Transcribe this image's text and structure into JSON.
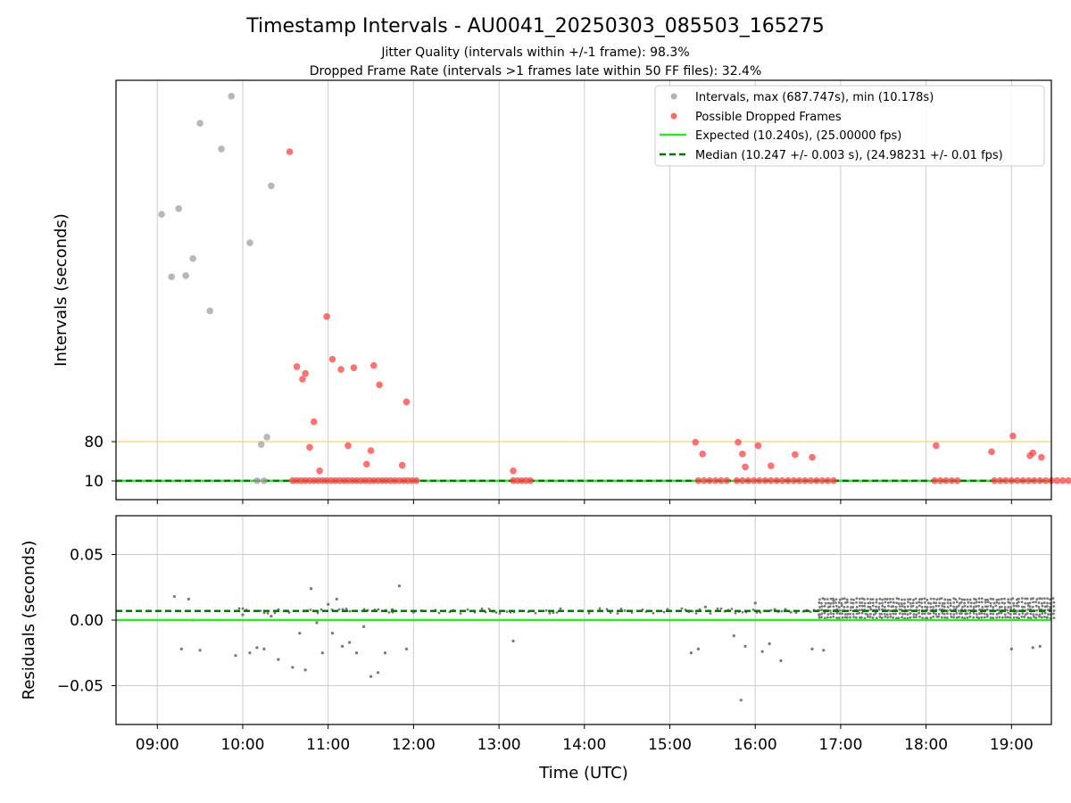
{
  "figure": {
    "title": "Timestamp Intervals - AU0041_20250303_085503_165275",
    "subtitle_1": "Jitter Quality (intervals within +/-1 frame): 98.3%",
    "subtitle_2": "Dropped Frame Rate (intervals >1 frames late within 50 FF files): 32.4%",
    "xlabel": "Time (UTC)"
  },
  "chart_data": [
    {
      "type": "scatter",
      "ylabel": "Intervals (seconds)",
      "x_ticks": [
        "09:00",
        "10:00",
        "11:00",
        "12:00",
        "13:00",
        "14:00",
        "15:00",
        "16:00",
        "17:00",
        "18:00",
        "19:00"
      ],
      "y_ticks": [
        10,
        80
      ],
      "y_scale": "custom non-linear (ticks shown at 10 and 80)",
      "grid": "vertical",
      "legend_position": "upper right",
      "reference_lines": [
        {
          "label": "80 s threshold",
          "y": 80,
          "color": "#ffd35c",
          "style": "solid"
        }
      ],
      "series": [
        {
          "name": "Intervals, max (687.747s), min (10.178s)",
          "color": "#a0a0a0",
          "style": "scatter",
          "x": [
            "09:03",
            "09:10",
            "09:15",
            "09:20",
            "09:25",
            "09:30",
            "09:37",
            "09:45",
            "09:52",
            "10:05",
            "10:10",
            "10:13",
            "10:15",
            "10:17",
            "10:20"
          ],
          "y": [
            480,
            370,
            490,
            372,
            402,
            640,
            310,
            595,
            687.747,
            430,
            10.2,
            75,
            10.2,
            88,
            530
          ]
        },
        {
          "name": "Possible Dropped Frames",
          "color": "#ff4444",
          "style": "scatter",
          "x": [
            "10:35",
            "10:38",
            "10:41",
            "10:44",
            "10:47",
            "10:50",
            "10:53",
            "10:56",
            "10:59",
            "11:02",
            "11:05",
            "11:08",
            "11:11",
            "11:14",
            "11:17",
            "11:20",
            "11:23",
            "11:26",
            "11:29",
            "11:32",
            "11:35",
            "11:38",
            "11:41",
            "11:44",
            "11:47",
            "11:50",
            "11:53",
            "11:56",
            "11:59",
            "12:02",
            "10:33",
            "10:38",
            "10:42",
            "10:44",
            "10:47",
            "10:50",
            "10:54",
            "10:59",
            "11:03",
            "11:09",
            "11:14",
            "11:18",
            "11:27",
            "11:30",
            "11:32",
            "11:36",
            "11:52",
            "11:55",
            "13:10",
            "13:13",
            "13:16",
            "13:19",
            "13:22",
            "15:20",
            "15:24",
            "15:28",
            "15:32",
            "15:36",
            "15:40",
            "15:47",
            "15:51",
            "15:55",
            "15:59",
            "16:03",
            "16:07",
            "16:11",
            "16:15",
            "16:19",
            "16:23",
            "16:27",
            "16:31",
            "16:35",
            "16:39",
            "16:43",
            "16:47",
            "16:51",
            "16:55",
            "18:06",
            "18:10",
            "18:14",
            "18:18",
            "18:22",
            "18:48",
            "18:52",
            "18:56",
            "19:00",
            "19:04",
            "19:08",
            "19:12",
            "19:16",
            "19:20",
            "19:24",
            "19:28",
            "19:32",
            "19:36",
            "19:40",
            "13:10",
            "15:18",
            "15:23",
            "15:48",
            "15:51",
            "15:53",
            "16:02",
            "16:11",
            "16:28",
            "16:40",
            "18:07",
            "18:46",
            "19:01",
            "19:13",
            "19:15",
            "19:21"
          ],
          "y": [
            10.5,
            10.5,
            10.5,
            10.5,
            10.5,
            10.5,
            10.5,
            10.5,
            10.5,
            10.5,
            10.5,
            10.5,
            10.5,
            10.5,
            10.5,
            10.5,
            10.5,
            10.5,
            10.5,
            10.5,
            10.5,
            10.5,
            10.5,
            10.5,
            10.5,
            10.5,
            10.5,
            10.5,
            10.5,
            10.5,
            590,
            212,
            190,
            200,
            70,
            115,
            28,
            300,
            225,
            207,
            73,
            210,
            40,
            64,
            214,
            180,
            38,
            150,
            10.5,
            10.5,
            10.5,
            10.5,
            10.5,
            10.5,
            10.5,
            10.5,
            10.5,
            10.5,
            10.5,
            10.5,
            10.5,
            10.5,
            10.5,
            10.5,
            10.5,
            10.5,
            10.5,
            10.5,
            10.5,
            10.5,
            10.5,
            10.5,
            10.5,
            10.5,
            10.5,
            10.5,
            10.5,
            10.5,
            10.5,
            10.5,
            10.5,
            10.5,
            10.5,
            10.5,
            10.5,
            10.5,
            10.5,
            10.5,
            10.5,
            10.5,
            10.5,
            10.5,
            10.5,
            10.5,
            10.5,
            10.5,
            28,
            79,
            58,
            79,
            58,
            35,
            73,
            37,
            57,
            52,
            73,
            62,
            90,
            55,
            60,
            52
          ]
        },
        {
          "name": "Expected (10.240s), (25.00000 fps)",
          "color": "#22ee22",
          "style": "solid",
          "y": 10.24
        },
        {
          "name": "Median (10.247 +/- 0.003 s), (24.98231 +/- 0.01 fps)",
          "color": "#007700",
          "style": "dashed",
          "y": 10.247
        }
      ]
    },
    {
      "type": "scatter",
      "ylabel": "Residuals (seconds)",
      "x_ticks": [
        "09:00",
        "10:00",
        "11:00",
        "12:00",
        "13:00",
        "14:00",
        "15:00",
        "16:00",
        "17:00",
        "18:00",
        "19:00"
      ],
      "y_ticks": [
        "−0.05",
        "0.00",
        "0.05"
      ],
      "ylim": [
        -0.08,
        0.08
      ],
      "grid": "both",
      "series": [
        {
          "name": "",
          "color": "#777777",
          "style": "scatter",
          "x": [
            "09:12",
            "09:17",
            "09:22",
            "09:25",
            "09:30",
            "09:55",
            "10:00",
            "10:05",
            "10:10",
            "10:15",
            "10:20",
            "10:25",
            "10:30",
            "10:35",
            "10:40",
            "10:44",
            "10:48",
            "10:52",
            "10:56",
            "11:00",
            "11:03",
            "11:06",
            "11:10",
            "11:15",
            "11:20",
            "11:25",
            "11:30",
            "11:35",
            "11:40",
            "11:45",
            "11:50",
            "11:55",
            "12:00",
            "13:10",
            "15:15",
            "15:20",
            "15:25",
            "15:45",
            "15:50",
            "15:53",
            "16:00",
            "16:05",
            "16:10",
            "16:18",
            "16:25",
            "16:40",
            "16:45",
            "16:48",
            "16:55",
            "19:00",
            "19:15",
            "19:20",
            "19:25"
          ],
          "y": [
            0.018,
            -0.022,
            0.016,
            0.0,
            -0.023,
            -0.027,
            0.004,
            -0.025,
            -0.021,
            -0.022,
            0.003,
            -0.03,
            0.007,
            -0.036,
            -0.01,
            -0.038,
            0.024,
            -0.002,
            -0.025,
            0.012,
            -0.01,
            0.016,
            -0.02,
            -0.017,
            -0.025,
            -0.005,
            -0.043,
            -0.04,
            -0.025,
            0.008,
            0.026,
            -0.022,
            0.006,
            -0.016,
            -0.025,
            -0.022,
            0.01,
            -0.012,
            -0.061,
            -0.02,
            0.013,
            -0.024,
            -0.018,
            -0.031,
            0.006,
            -0.022,
            0.004,
            -0.023,
            0.015,
            -0.022,
            -0.021,
            -0.02,
            0.002
          ]
        },
        {
          "name": "",
          "color": "#777777",
          "style": "dense scatter band",
          "x_start": "16:45",
          "x_end": "19:30",
          "y_range": [
            0.002,
            0.016
          ]
        },
        {
          "name": "",
          "color": "#22ee22",
          "style": "solid",
          "y": 0.0
        },
        {
          "name": "",
          "color": "#007700",
          "style": "dashed",
          "y": 0.007
        }
      ]
    }
  ]
}
